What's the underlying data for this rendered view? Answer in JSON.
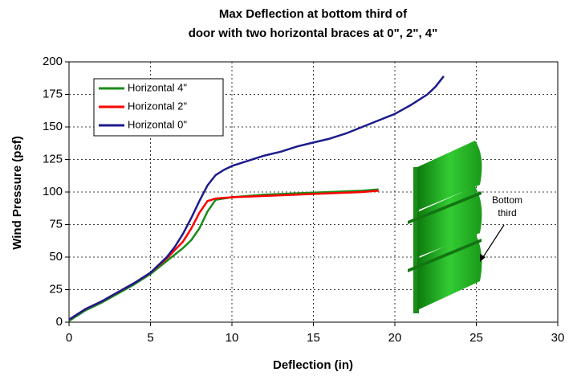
{
  "chart_data": {
    "type": "line",
    "title": [
      "Max Deflection at bottom third of",
      "door with two horizontal braces at 0\", 2\", 4\""
    ],
    "x_label": "Deflection (in)",
    "y_label": "Wind Pressure (psf)",
    "xlim": [
      0,
      30
    ],
    "xticks": [
      0,
      5,
      10,
      15,
      20,
      25,
      30
    ],
    "ylim": [
      0,
      200
    ],
    "yticks": [
      0,
      25,
      50,
      75,
      100,
      125,
      150,
      175,
      200
    ],
    "grid": true,
    "legend_position": "upper-left",
    "annotation": [
      "Bottom",
      "third"
    ],
    "series": [
      {
        "name": "Horizontal 4\"",
        "color": "#1a8c1a",
        "x": [
          0,
          1,
          2,
          3,
          4,
          5,
          6,
          7,
          7.5,
          8,
          8.5,
          9,
          10,
          12,
          14,
          16,
          18,
          19
        ],
        "values": [
          1,
          9,
          15,
          22,
          29,
          37,
          47,
          57,
          63,
          72,
          85,
          94,
          96,
          98,
          99,
          100,
          101,
          102
        ]
      },
      {
        "name": "Horizontal 2\"",
        "color": "#ff0000",
        "x": [
          0,
          1,
          2,
          3,
          4,
          5,
          6,
          7,
          7.5,
          8,
          8.5,
          9,
          10,
          12,
          14,
          16,
          18,
          19
        ],
        "values": [
          2,
          10,
          16,
          23,
          30,
          38,
          49,
          62,
          72,
          84,
          93,
          95,
          96,
          97,
          98,
          99,
          100,
          101
        ]
      },
      {
        "name": "Horizontal 0\"",
        "color": "#1c1c8c",
        "x": [
          0,
          1,
          2,
          3,
          4,
          5,
          6,
          6.5,
          7,
          7.5,
          8,
          8.5,
          9,
          9.5,
          10,
          11,
          12,
          13,
          14,
          15,
          16,
          17,
          18,
          19,
          20,
          21,
          22,
          22.5,
          23
        ],
        "values": [
          2,
          10,
          16,
          23,
          30,
          38,
          50,
          58,
          68,
          80,
          93,
          105,
          113,
          117,
          120,
          124,
          128,
          131,
          135,
          138,
          141,
          145,
          150,
          155,
          160,
          167,
          175,
          181,
          189
        ]
      }
    ]
  }
}
